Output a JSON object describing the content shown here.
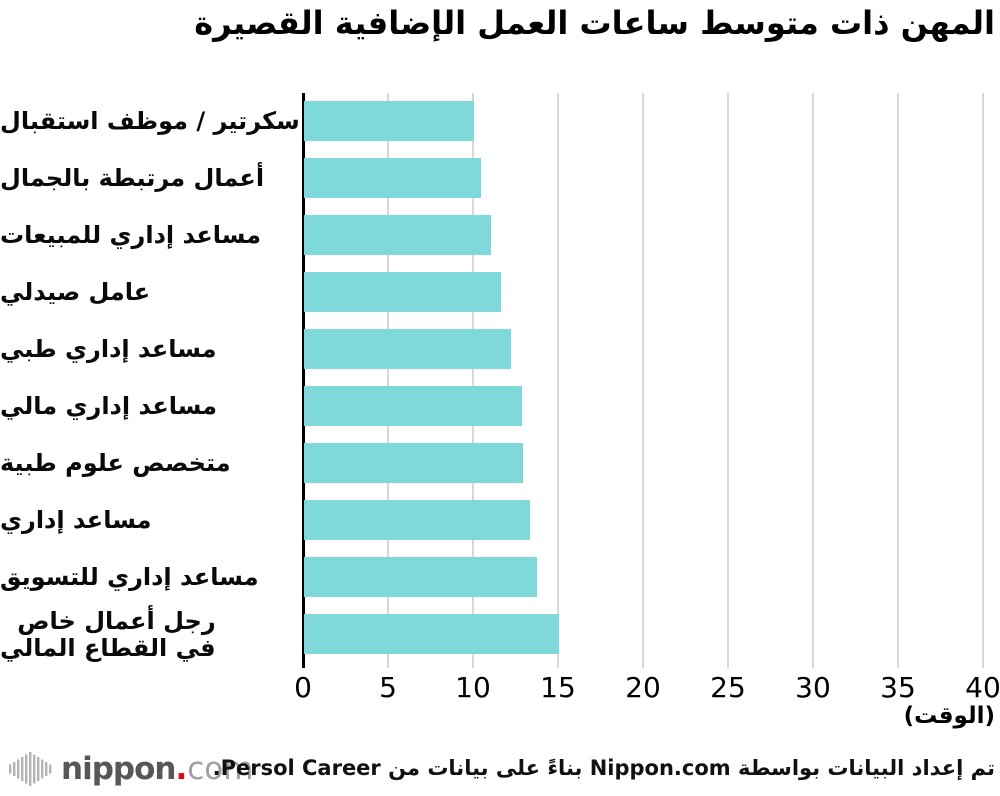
{
  "title": "المهن ذات متوسط ساعات العمل الإضافية القصيرة",
  "chart_data": {
    "type": "bar",
    "orientation": "horizontal",
    "title": "المهن ذات متوسط ساعات العمل الإضافية القصيرة",
    "categories": [
      "سكرتير / موظف استقبال",
      "أعمال مرتبطة بالجمال",
      "مساعد إداري للمبيعات",
      "عامل صيدلي",
      "مساعد إداري طبي",
      "مساعد إداري مالي",
      "متخصص علوم طبية",
      "مساعد إداري",
      "مساعد إداري للتسويق",
      "رجل أعمال خاص\nفي القطاع المالي"
    ],
    "values": [
      10.0,
      10.4,
      11.0,
      11.6,
      12.2,
      12.8,
      12.9,
      13.3,
      13.7,
      15.0
    ],
    "xlim": [
      0,
      40
    ],
    "xticks": [
      0,
      5,
      10,
      15,
      20,
      25,
      30,
      35,
      40
    ],
    "xlabel": "(الوقت)",
    "grid": true,
    "legend": "none",
    "bar_color": "#7fd9db",
    "grid_color": "#d8d8d8",
    "axis_color": "#000000"
  },
  "footer": {
    "attribution": "تم إعداد البيانات بواسطة Nippon.com بناءً على بيانات من Persol Career.",
    "logo": {
      "mark_icon": "soundwave-bars-icon",
      "brand": "nippon",
      "dot": ".",
      "tld": "com",
      "brand_color": "#575757",
      "dot_color": "#e60012",
      "tld_color": "#9fa0a0"
    }
  }
}
